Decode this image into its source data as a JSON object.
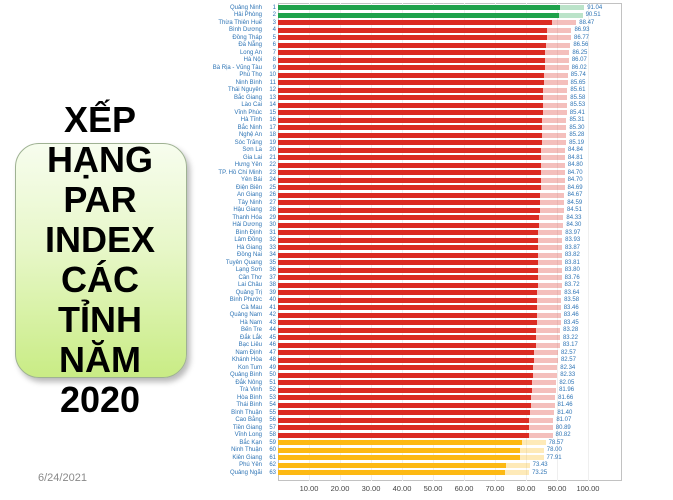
{
  "left_panel": {
    "title_lines": [
      "XẾP",
      "HẠNG",
      "PAR",
      "INDEX",
      "CÁC",
      "TỈNH",
      "NĂM",
      "2020"
    ],
    "box_top_color": "#f7fdee",
    "box_bottom_color": "#c9ec85"
  },
  "footer": {
    "date": "6/24/2021"
  },
  "chart_data": {
    "type": "bar",
    "orientation": "horizontal",
    "title": "XẾP HẠNG PAR INDEX CÁC TỈNH NĂM 2020",
    "categories": [
      "Quảng Ninh",
      "Hải Phòng",
      "Thừa Thiên Huế",
      "Bình Dương",
      "Đồng Tháp",
      "Đà Nẵng",
      "Long An",
      "Hà Nội",
      "Bà Rịa - Vũng Tàu",
      "Phú Thọ",
      "Ninh Bình",
      "Thái Nguyên",
      "Bắc Giang",
      "Lào Cai",
      "Vĩnh Phúc",
      "Hà Tĩnh",
      "Bắc Ninh",
      "Nghệ An",
      "Sóc Trăng",
      "Sơn La",
      "Gia Lai",
      "Hưng Yên",
      "TP. Hồ Chí Minh",
      "Yên Bái",
      "Điện Biên",
      "An Giang",
      "Tây Ninh",
      "Hậu Giang",
      "Thanh Hóa",
      "Hải Dương",
      "Bình Định",
      "Lâm Đồng",
      "Hà Giang",
      "Đồng Nai",
      "Tuyên Quang",
      "Lạng Sơn",
      "Cần Thơ",
      "Lai Châu",
      "Quảng Trị",
      "Bình Phước",
      "Cà Mau",
      "Quảng Nam",
      "Hà Nam",
      "Bến Tre",
      "Đắk Lắk",
      "Bạc Liêu",
      "Nam Định",
      "Khánh Hòa",
      "Kon Tum",
      "Quảng Bình",
      "Đắk Nông",
      "Trà Vinh",
      "Hòa Bình",
      "Thái Bình",
      "Bình Thuận",
      "Cao Bằng",
      "Tiền Giang",
      "Vĩnh Long",
      "Bắc Kạn",
      "Ninh Thuận",
      "Kiên Giang",
      "Phú Yên",
      "Quảng Ngãi"
    ],
    "values": [
      91.04,
      90.51,
      88.47,
      86.93,
      86.77,
      86.56,
      86.25,
      86.07,
      86.02,
      85.74,
      85.65,
      85.61,
      85.58,
      85.53,
      85.41,
      85.31,
      85.3,
      85.28,
      85.19,
      84.84,
      84.81,
      84.8,
      84.7,
      84.7,
      84.69,
      84.67,
      84.59,
      84.51,
      84.33,
      84.3,
      83.97,
      83.93,
      83.87,
      83.82,
      83.81,
      83.8,
      83.76,
      83.72,
      83.64,
      83.58,
      83.46,
      83.46,
      83.45,
      83.28,
      83.22,
      83.17,
      82.57,
      82.57,
      82.34,
      82.33,
      82.05,
      81.96,
      81.66,
      81.46,
      81.4,
      81.07,
      80.89,
      80.82,
      78.57,
      78.0,
      77.91,
      73.43,
      73.25
    ],
    "ranks_start_at": 1,
    "xlim": [
      0,
      100
    ],
    "x_ticks": [
      10,
      20,
      30,
      40,
      50,
      60,
      70,
      80,
      90,
      100
    ],
    "color_groups": [
      {
        "from": 1,
        "to": 2,
        "color": "#1fa24b"
      },
      {
        "from": 3,
        "to": 58,
        "color": "#db2b22"
      },
      {
        "from": 59,
        "to": 63,
        "color": "#fdb913"
      }
    ],
    "label_color": "#2e74b5",
    "grid": true,
    "legend": "none"
  }
}
